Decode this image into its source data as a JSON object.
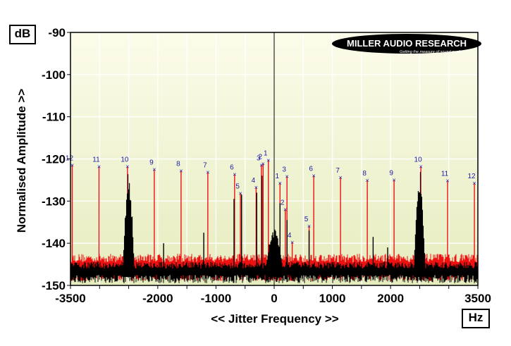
{
  "chart_data": {
    "type": "line",
    "xlabel": "<< Jitter Frequency >>",
    "ylabel": "Normalised Amplitude >>",
    "x_unit": "Hz",
    "y_unit": "dB",
    "xlim": [
      -3500,
      3500
    ],
    "ylim": [
      -150,
      -90
    ],
    "x_tick_labels": [
      "-3500",
      "-2000",
      "-1000",
      "0",
      "1000",
      "2000",
      "3500"
    ],
    "y_tick_labels": [
      "-90",
      "-100",
      "-110",
      "-120",
      "-130",
      "-140",
      "-150"
    ],
    "grid": true,
    "logo": {
      "title": "MILLER AUDIO RESEARCH",
      "tagline": "Getting the measure of sound quality"
    },
    "colors": {
      "plot_background_top": "#fcfcea",
      "plot_background_bottom": "#e6ecbe",
      "series_red": "#ee1111",
      "series_black": "#000000",
      "marker": "#1a1aa8"
    },
    "series": [
      {
        "color": "#ee1111",
        "noise_floor_db": -145,
        "points": [
          {
            "x": -3470,
            "y": -121.5,
            "label": "12"
          },
          {
            "x": -3010,
            "y": -121.8,
            "label": "11"
          },
          {
            "x": -2520,
            "y": -121.8,
            "label": "10"
          },
          {
            "x": -2060,
            "y": -122.5,
            "label": "9"
          },
          {
            "x": -1600,
            "y": -122.8,
            "label": "8"
          },
          {
            "x": -1140,
            "y": -123.2,
            "label": "7"
          },
          {
            "x": -680,
            "y": -123.7,
            "label": "6"
          },
          {
            "x": -580,
            "y": -128.2,
            "label": "5"
          },
          {
            "x": -310,
            "y": -126.8,
            "label": "4"
          },
          {
            "x": -220,
            "y": -121.5,
            "label": "3"
          },
          {
            "x": -190,
            "y": -121.2,
            "label": "2"
          },
          {
            "x": -100,
            "y": -120.3,
            "label": "1"
          },
          {
            "x": 100,
            "y": -125.8,
            "label": "1"
          },
          {
            "x": 190,
            "y": -132.0,
            "label": "2"
          },
          {
            "x": 220,
            "y": -124.2,
            "label": "3"
          },
          {
            "x": 310,
            "y": -139.8,
            "label": "4"
          },
          {
            "x": 600,
            "y": -136.0,
            "label": "5"
          },
          {
            "x": 680,
            "y": -124.0,
            "label": "6"
          },
          {
            "x": 1140,
            "y": -124.4,
            "label": "7"
          },
          {
            "x": 1600,
            "y": -125.1,
            "label": "8"
          },
          {
            "x": 2060,
            "y": -125.0,
            "label": "9"
          },
          {
            "x": 2520,
            "y": -121.8,
            "label": "10"
          },
          {
            "x": 2980,
            "y": -125.2,
            "label": "11"
          },
          {
            "x": 3440,
            "y": -125.8,
            "label": "12"
          }
        ]
      },
      {
        "color": "#000000",
        "noise_floor_db": -146,
        "peaks": [
          {
            "x": -2500,
            "y": -122.0
          },
          {
            "x": 2500,
            "y": -122.0
          },
          {
            "x": 0,
            "y": -136.0
          },
          {
            "x": -690,
            "y": -129.5
          },
          {
            "x": -560,
            "y": -128.5
          },
          {
            "x": -300,
            "y": -128.0
          },
          {
            "x": -210,
            "y": -124.0
          },
          {
            "x": 100,
            "y": -130.5
          },
          {
            "x": 220,
            "y": -134.5
          },
          {
            "x": 600,
            "y": -137.0
          },
          {
            "x": -1210,
            "y": -137.5
          },
          {
            "x": -1900,
            "y": -140.0
          },
          {
            "x": 1700,
            "y": -138.5
          },
          {
            "x": 1950,
            "y": -141.0
          }
        ]
      }
    ]
  }
}
